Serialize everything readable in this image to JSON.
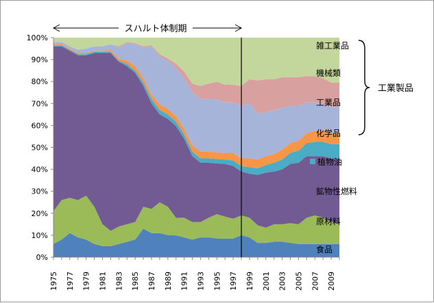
{
  "chart_data": {
    "type": "area",
    "stacked": true,
    "percent": true,
    "x": [
      1975,
      1976,
      1977,
      1978,
      1979,
      1980,
      1981,
      1982,
      1983,
      1984,
      1985,
      1986,
      1987,
      1988,
      1989,
      1990,
      1991,
      1992,
      1993,
      1994,
      1995,
      1996,
      1997,
      1998,
      1999,
      2000,
      2001,
      2002,
      2003,
      2004,
      2005,
      2006,
      2007,
      2008,
      2009,
      2010
    ],
    "x_tick_labels": [
      "1975",
      "1977",
      "1979",
      "1981",
      "1983",
      "1985",
      "1987",
      "1989",
      "1991",
      "1993",
      "1995",
      "1997",
      "1999",
      "2001",
      "2003",
      "2005",
      "2007",
      "2009"
    ],
    "y_tick_labels": [
      "0%",
      "10%",
      "20%",
      "30%",
      "40%",
      "50%",
      "60%",
      "70%",
      "80%",
      "90%",
      "100%"
    ],
    "ylim": [
      0,
      100
    ],
    "series": [
      {
        "name": "食品",
        "color": "#4f81bd",
        "values": [
          6,
          8,
          11,
          9,
          8,
          6,
          5,
          5,
          6,
          7,
          8,
          13,
          11,
          11,
          10,
          10,
          9,
          8,
          9,
          9,
          8.5,
          8.5,
          8.5,
          10,
          9,
          6.5,
          6.5,
          7,
          7,
          6.5,
          6,
          6,
          6,
          6,
          6,
          6
        ]
      },
      {
        "name": "原材料",
        "color": "#9bbb59",
        "values": [
          15,
          18,
          16,
          17,
          20,
          17,
          10,
          7,
          8,
          8,
          8,
          10,
          11,
          14,
          13,
          8,
          9,
          8,
          7,
          9,
          11,
          10,
          9,
          9,
          9,
          8,
          7,
          8,
          8,
          9,
          9,
          12,
          13,
          12,
          10,
          9
        ]
      },
      {
        "name": "鉱物性燃料",
        "color": "#725a93",
        "values": [
          75,
          70,
          67,
          66,
          64,
          70,
          78,
          81,
          75,
          72,
          68,
          55,
          48,
          40,
          40,
          42,
          36,
          30,
          27,
          25,
          23,
          24,
          24,
          20,
          20,
          23,
          25,
          24,
          25,
          27,
          28,
          28,
          27,
          28,
          29,
          30
        ]
      },
      {
        "name": "植物油",
        "color": "#4bacc6",
        "values": [
          0.5,
          0.5,
          0.5,
          0.5,
          0.5,
          0.5,
          0.5,
          0.5,
          0.5,
          1,
          1,
          1.5,
          2,
          2,
          2,
          2,
          2,
          2,
          2,
          2,
          2,
          2,
          2.5,
          2.5,
          3,
          3,
          3.5,
          4,
          4.5,
          5,
          5.5,
          6,
          6.5,
          6.5,
          6.5,
          6.5
        ]
      },
      {
        "name": "化学品",
        "color": "#f79646",
        "values": [
          0.5,
          0.5,
          0.5,
          0.5,
          0.5,
          0.5,
          0.5,
          1,
          1,
          1.5,
          2,
          2,
          2,
          2.5,
          2.5,
          2.5,
          2.5,
          3,
          3,
          3,
          3,
          3,
          3.5,
          3.5,
          4,
          4,
          4,
          4,
          4.5,
          4.5,
          4.5,
          4.5,
          5,
          5,
          5,
          5
        ]
      },
      {
        "name": "工業品",
        "color": "#a5b4d8",
        "values": [
          1,
          1,
          1,
          1.5,
          2,
          2,
          2,
          2.5,
          5,
          8,
          10,
          14,
          22,
          22,
          22,
          22,
          23,
          24,
          24,
          24,
          24,
          23,
          23,
          24,
          25,
          21,
          20,
          20,
          19,
          17,
          16,
          14,
          13,
          12,
          12,
          12
        ]
      },
      {
        "name": "機械類",
        "color": "#d9a0a0",
        "values": [
          0,
          0,
          0,
          0,
          0,
          0,
          0,
          0,
          0.5,
          0.5,
          0.5,
          0.5,
          0.5,
          1,
          1,
          2,
          3,
          4,
          6,
          7,
          8,
          8,
          8,
          9,
          11,
          15,
          15,
          14,
          14,
          13,
          13,
          12,
          12,
          12,
          11,
          11
        ]
      },
      {
        "name": "雑工業品",
        "color": "#c3d69b",
        "values": [
          2,
          2,
          4,
          5.5,
          5,
          4,
          4,
          3,
          4,
          2,
          2.5,
          4,
          3.5,
          7.5,
          9.5,
          12,
          15.5,
          21,
          22,
          21,
          20,
          21.5,
          21.5,
          22,
          19,
          19.5,
          19,
          19,
          18,
          18,
          18,
          17.5,
          17.5,
          18.5,
          20.5,
          20.5
        ]
      }
    ],
    "annotations": {
      "period_label": "スハルト体制期",
      "period_start": 1975,
      "period_end": 1998,
      "bracket_label": "工業製品"
    },
    "grid": false,
    "legend": "inline-right"
  },
  "colors": {
    "axis": "#888888",
    "period_line": "#000000"
  }
}
